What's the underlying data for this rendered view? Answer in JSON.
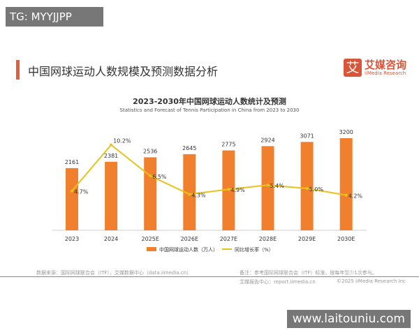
{
  "watermarks": {
    "top": "TG: MYYJJPP",
    "bottom": "www.laitouniu.com"
  },
  "page_title": "中国网球运动人数规模及预测数据分析",
  "logo": {
    "mark": "艾",
    "cn": "艾媒咨询",
    "en": "iiMedia Research"
  },
  "chart_data": {
    "type": "bar",
    "title": "2023-2030年中国网球运动人数统计及预测",
    "subtitle": "Statistics and Forecast of Tennis Participation in China from 2023 to 2030",
    "categories": [
      "2023",
      "2024",
      "2025E",
      "2026E",
      "2027E",
      "2028E",
      "2029E",
      "2030E"
    ],
    "series": [
      {
        "name": "中国网球运动人数（万人）",
        "type": "bar",
        "color": "#f07f2e",
        "values": [
          2161,
          2381,
          2536,
          2645,
          2775,
          2924,
          3071,
          3200
        ],
        "labels": [
          "2161",
          "2381",
          "2536",
          "2645",
          "2775",
          "2924",
          "3071",
          "3200"
        ]
      },
      {
        "name": "同比增长率（%）",
        "type": "line",
        "color": "#e8c21a",
        "values": [
          4.7,
          10.2,
          6.5,
          4.3,
          4.9,
          5.4,
          5.0,
          4.2
        ],
        "labels": [
          "4.7%",
          "10.2%",
          "6.5%",
          "4.3%",
          "4.9%",
          "5.4%",
          "5.0%",
          "4.2%"
        ]
      }
    ],
    "legend": "bottom",
    "grid": false
  },
  "footer": {
    "source": "数据来源：国际网球联合会（ITF），艾媒数据中心（data.iimedia.cn）",
    "note": "备注：参考国际网球联合会（ITF）标准，按每年至少1次参与。",
    "center": "艾媒报告中心：report.iimedia.cn",
    "copyright": "©2025  iiMedia Research  Inc"
  }
}
